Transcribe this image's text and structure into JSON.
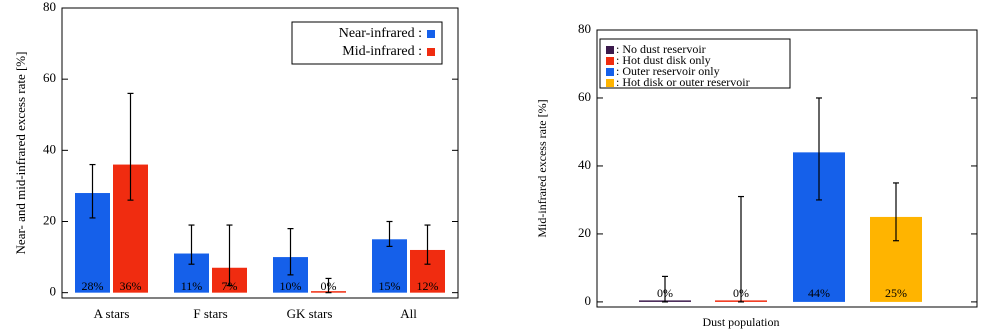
{
  "chart_data": [
    {
      "type": "bar",
      "ylabel": "Near- and mid-infrared excess rate [%]",
      "categories": [
        "A stars",
        "F stars",
        "GK stars",
        "All"
      ],
      "series": [
        {
          "name": "Near-infrared :",
          "color": "#1560ea",
          "values": [
            28,
            11,
            10,
            15
          ],
          "value_labels": [
            "28%",
            "11%",
            "10%",
            "15%"
          ],
          "lower": [
            21,
            8,
            5,
            13
          ],
          "upper": [
            36,
            19,
            18,
            20
          ]
        },
        {
          "name": "Mid-infrared :",
          "color": "#f02c10",
          "values": [
            36,
            7,
            0,
            12
          ],
          "value_labels": [
            "36%",
            "7%",
            "0%",
            "12%"
          ],
          "lower": [
            26,
            2,
            0,
            8
          ],
          "upper": [
            56,
            19,
            4,
            19
          ]
        }
      ],
      "ylim": [
        -1.5,
        80
      ],
      "yticks": [
        0,
        20,
        40,
        60,
        80
      ],
      "legend": "upper right"
    },
    {
      "type": "bar",
      "xlabel": "Dust population",
      "ylabel": "Mid-infrared excess rate [%]",
      "categories": [
        ": No dust reservoir",
        ": Hot dust disk only",
        ": Outer reservoir only",
        ": Hot disk or outer reservoir"
      ],
      "colors": [
        "#3b1a4c",
        "#f02c10",
        "#1560ea",
        "#ffb400"
      ],
      "values": [
        0,
        0,
        44,
        25
      ],
      "value_labels": [
        "0%",
        "0%",
        "44%",
        "25%"
      ],
      "lower": [
        0,
        0,
        30,
        18
      ],
      "upper": [
        7.5,
        31,
        60,
        35
      ],
      "ylim": [
        -1.5,
        80
      ],
      "yticks": [
        0,
        20,
        40,
        60,
        80
      ],
      "legend": "upper left"
    }
  ]
}
